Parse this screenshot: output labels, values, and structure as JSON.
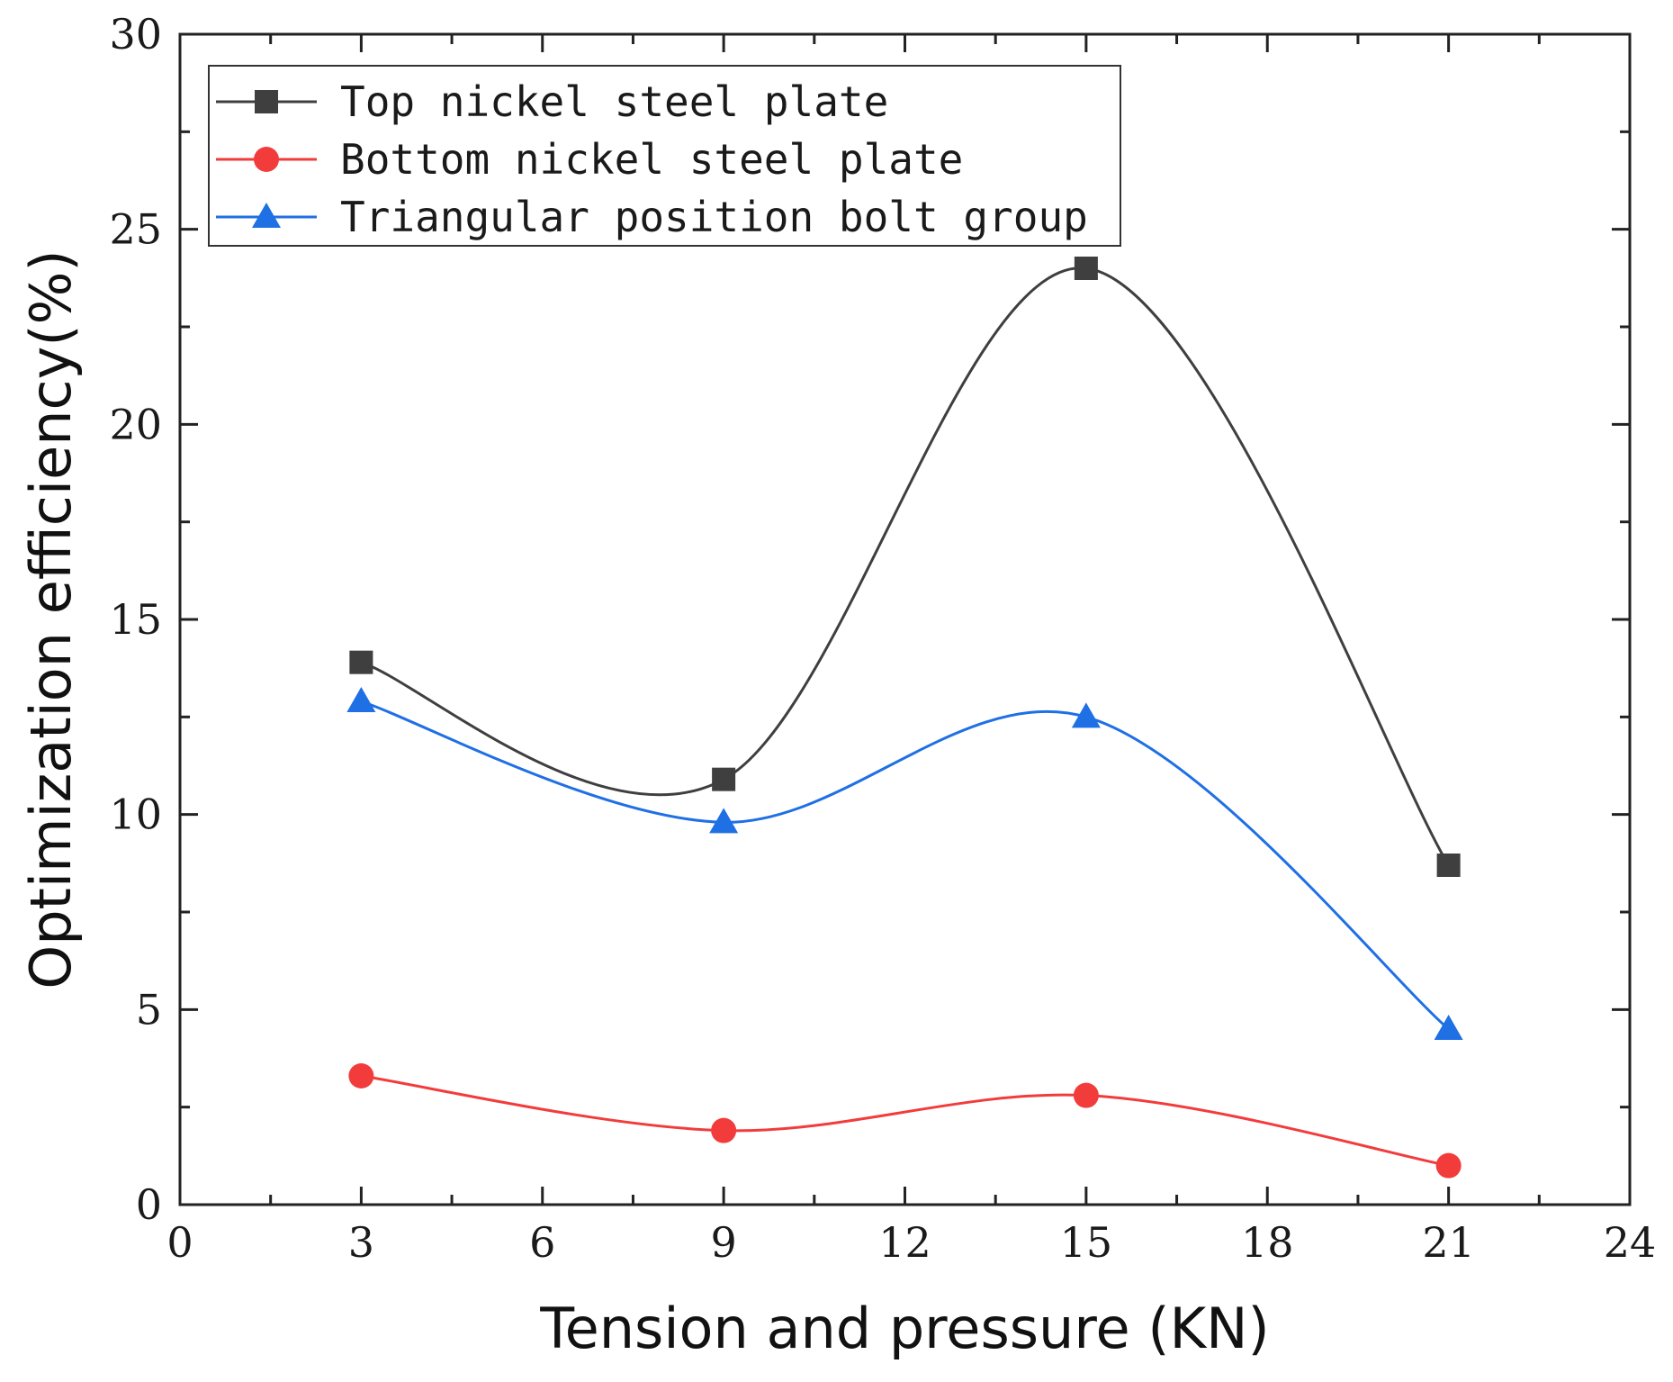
{
  "chart_data": {
    "type": "line",
    "title": "",
    "xlabel": "Tension and pressure (KN)",
    "ylabel": "Optimization efficiency(%)",
    "xlim": [
      0,
      24
    ],
    "ylim": [
      0,
      30
    ],
    "x_ticks": [
      0,
      3,
      6,
      9,
      12,
      15,
      18,
      21,
      24
    ],
    "y_ticks": [
      0,
      5,
      10,
      15,
      20,
      25,
      30
    ],
    "x": [
      3,
      9,
      15,
      21
    ],
    "grid": false,
    "legend_position": "top-left",
    "series": [
      {
        "name": "Top nickel steel plate",
        "values": [
          13.9,
          10.9,
          24.0,
          8.7
        ],
        "color": "#3f3f3f",
        "marker": "square"
      },
      {
        "name": "Bottom nickel steel plate",
        "values": [
          3.3,
          1.9,
          2.8,
          1.0
        ],
        "color": "#f23c3c",
        "marker": "circle"
      },
      {
        "name": "Triangular position bolt group",
        "values": [
          12.9,
          9.8,
          12.5,
          4.5
        ],
        "color": "#1f6fe5",
        "marker": "triangle"
      }
    ]
  }
}
